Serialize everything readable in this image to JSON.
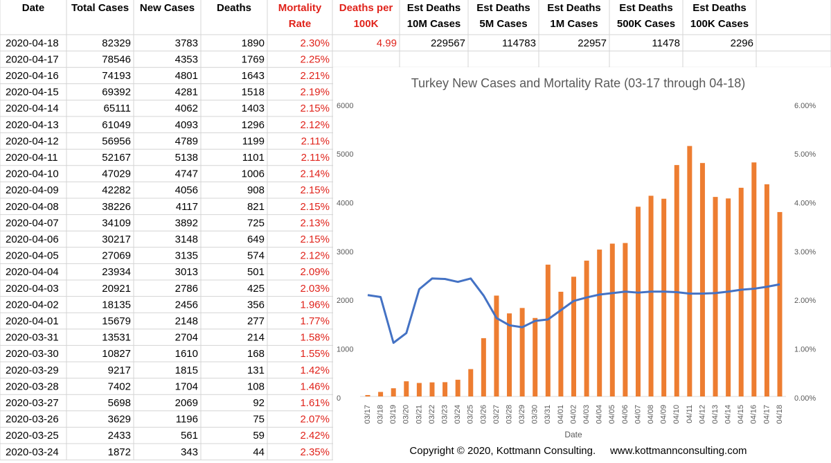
{
  "table": {
    "header": [
      [
        "Date"
      ],
      [
        "Total Cases"
      ],
      [
        "New Cases"
      ],
      [
        "Deaths"
      ],
      [
        "Mortality",
        "Rate"
      ],
      [
        "Deaths per",
        "100K"
      ],
      [
        "Est Deaths",
        "10M Cases"
      ],
      [
        "Est Deaths",
        "5M Cases"
      ],
      [
        "Est Deaths",
        "1M Cases"
      ],
      [
        "Est Deaths",
        "500K Cases"
      ],
      [
        "Est Deaths",
        "100K Cases"
      ]
    ],
    "rows": [
      [
        "2020-04-18",
        "82329",
        "3783",
        "1890",
        "2.30%",
        "4.99",
        "229567",
        "114783",
        "22957",
        "11478",
        "2296"
      ],
      [
        "2020-04-17",
        "78546",
        "4353",
        "1769",
        "2.25%"
      ],
      [
        "2020-04-16",
        "74193",
        "4801",
        "1643",
        "2.21%"
      ],
      [
        "2020-04-15",
        "69392",
        "4281",
        "1518",
        "2.19%"
      ],
      [
        "2020-04-14",
        "65111",
        "4062",
        "1403",
        "2.15%"
      ],
      [
        "2020-04-13",
        "61049",
        "4093",
        "1296",
        "2.12%"
      ],
      [
        "2020-04-12",
        "56956",
        "4789",
        "1199",
        "2.11%"
      ],
      [
        "2020-04-11",
        "52167",
        "5138",
        "1101",
        "2.11%"
      ],
      [
        "2020-04-10",
        "47029",
        "4747",
        "1006",
        "2.14%"
      ],
      [
        "2020-04-09",
        "42282",
        "4056",
        "908",
        "2.15%"
      ],
      [
        "2020-04-08",
        "38226",
        "4117",
        "821",
        "2.15%"
      ],
      [
        "2020-04-07",
        "34109",
        "3892",
        "725",
        "2.13%"
      ],
      [
        "2020-04-06",
        "30217",
        "3148",
        "649",
        "2.15%"
      ],
      [
        "2020-04-05",
        "27069",
        "3135",
        "574",
        "2.12%"
      ],
      [
        "2020-04-04",
        "23934",
        "3013",
        "501",
        "2.09%"
      ],
      [
        "2020-04-03",
        "20921",
        "2786",
        "425",
        "2.03%"
      ],
      [
        "2020-04-02",
        "18135",
        "2456",
        "356",
        "1.96%"
      ],
      [
        "2020-04-01",
        "15679",
        "2148",
        "277",
        "1.77%"
      ],
      [
        "2020-03-31",
        "13531",
        "2704",
        "214",
        "1.58%"
      ],
      [
        "2020-03-30",
        "10827",
        "1610",
        "168",
        "1.55%"
      ],
      [
        "2020-03-29",
        "9217",
        "1815",
        "131",
        "1.42%"
      ],
      [
        "2020-03-28",
        "7402",
        "1704",
        "108",
        "1.46%"
      ],
      [
        "2020-03-27",
        "5698",
        "2069",
        "92",
        "1.61%"
      ],
      [
        "2020-03-26",
        "3629",
        "1196",
        "75",
        "2.07%"
      ],
      [
        "2020-03-25",
        "2433",
        "561",
        "59",
        "2.42%"
      ],
      [
        "2020-03-24",
        "1872",
        "343",
        "44",
        "2.35%"
      ]
    ]
  },
  "chart_data": {
    "type": "bar-line",
    "title": "Turkey New Cases and Mortality Rate (03-17 through 04-18)",
    "x_label": "Date",
    "categories": [
      "03/17",
      "03/18",
      "03/19",
      "03/20",
      "03/21",
      "03/22",
      "03/23",
      "03/24",
      "03/25",
      "03/26",
      "03/27",
      "03/28",
      "03/29",
      "03/30",
      "03/31",
      "04/01",
      "04/02",
      "04/03",
      "04/04",
      "04/05",
      "04/06",
      "04/07",
      "04/08",
      "04/09",
      "04/10",
      "04/11",
      "04/12",
      "04/13",
      "04/14",
      "04/15",
      "04/16",
      "04/17",
      "04/18"
    ],
    "series": [
      {
        "name": "New Cases",
        "type": "bar",
        "color": "#ED7D31",
        "values": [
          29,
          93,
          168,
          311,
          277,
          289,
          293,
          343,
          561,
          1196,
          2069,
          1704,
          1815,
          1610,
          2704,
          2148,
          2456,
          2786,
          3013,
          3135,
          3148,
          3892,
          4117,
          4056,
          4747,
          5138,
          4789,
          4093,
          4062,
          4281,
          4801,
          4353,
          3783
        ]
      },
      {
        "name": "Mortality Rate",
        "type": "line",
        "axis": "y2",
        "color": "#4472C4",
        "values": [
          2.08,
          2.04,
          1.1,
          1.3,
          2.2,
          2.42,
          2.41,
          2.35,
          2.42,
          2.07,
          1.61,
          1.46,
          1.42,
          1.55,
          1.58,
          1.77,
          1.96,
          2.03,
          2.09,
          2.12,
          2.15,
          2.13,
          2.15,
          2.15,
          2.14,
          2.11,
          2.11,
          2.12,
          2.15,
          2.19,
          2.21,
          2.25,
          2.3
        ]
      }
    ],
    "ylim": [
      0,
      6000
    ],
    "yticks": [
      0,
      1000,
      2000,
      3000,
      4000,
      5000,
      6000
    ],
    "y2lim": [
      0,
      6
    ],
    "y2ticks": [
      {
        "value": 0,
        "label": "0.00%"
      },
      {
        "value": 1,
        "label": "1.00%"
      },
      {
        "value": 2,
        "label": "2.00%"
      },
      {
        "value": 3,
        "label": "3.00%"
      },
      {
        "value": 4,
        "label": "4.00%"
      },
      {
        "value": 5,
        "label": "5.00%"
      },
      {
        "value": 6,
        "label": "6.00%"
      }
    ],
    "grid": false,
    "footer": "Copyright © 2020, Kottmann Consulting.     www.kottmannconsulting.com"
  }
}
